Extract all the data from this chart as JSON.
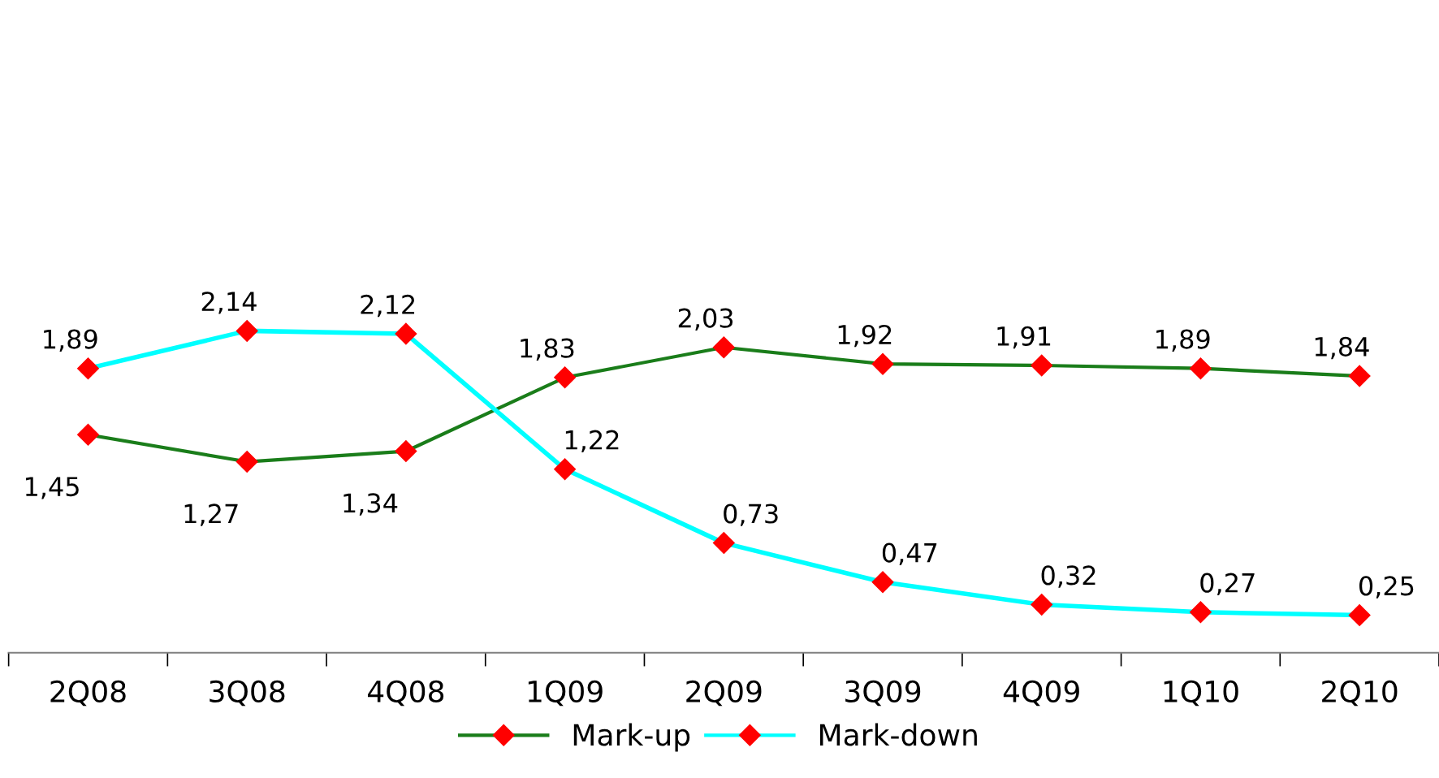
{
  "chart_data": {
    "type": "line",
    "categories": [
      "2Q08",
      "3Q08",
      "4Q08",
      "1Q09",
      "2Q09",
      "3Q09",
      "4Q09",
      "1Q10",
      "2Q10"
    ],
    "series": [
      {
        "name": "Mark-up",
        "color": "#1a7d1a",
        "values": [
          1.45,
          1.27,
          1.34,
          1.83,
          2.03,
          1.92,
          1.91,
          1.89,
          1.84
        ],
        "value_labels": [
          "1,45",
          "1,27",
          "1,34",
          "1,83",
          "2,03",
          "1,92",
          "1,91",
          "1,89",
          "1,84"
        ]
      },
      {
        "name": "Mark-down",
        "color": "#00ffff",
        "values": [
          1.89,
          2.14,
          2.12,
          1.22,
          0.73,
          0.47,
          0.32,
          0.27,
          0.25
        ],
        "value_labels": [
          "1,89",
          "2,14",
          "2,12",
          "1,22",
          "0,73",
          "0,47",
          "0,32",
          "0,27",
          "0,25"
        ]
      }
    ],
    "tick_labels": "x",
    "marker": "diamond",
    "line_style": "solid",
    "legend": "bottom",
    "grid": false
  }
}
